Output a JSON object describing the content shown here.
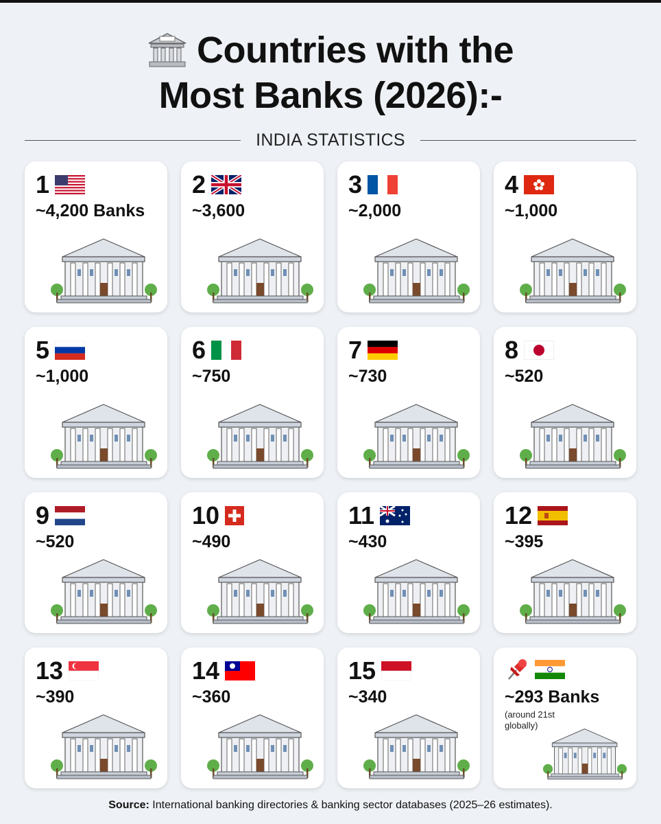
{
  "header": {
    "title_line1": "Countries with the",
    "title_line2": "Most Banks (2026):-",
    "subtitle": "INDIA STATISTICS"
  },
  "cards": [
    {
      "rank": "1",
      "count": "~4,200 Banks"
    },
    {
      "rank": "2",
      "count": "~3,600"
    },
    {
      "rank": "3",
      "count": "~2,000"
    },
    {
      "rank": "4",
      "count": "~1,000"
    },
    {
      "rank": "5",
      "count": "~1,000"
    },
    {
      "rank": "6",
      "count": "~750"
    },
    {
      "rank": "7",
      "count": "~730"
    },
    {
      "rank": "8",
      "count": "~520"
    },
    {
      "rank": "9",
      "count": "~520"
    },
    {
      "rank": "10",
      "count": "~490"
    },
    {
      "rank": "11",
      "count": "~430"
    },
    {
      "rank": "12",
      "count": "~395"
    },
    {
      "rank": "13",
      "count": "~390"
    },
    {
      "rank": "14",
      "count": "~360"
    },
    {
      "rank": "15",
      "count": "~340"
    },
    {
      "count": "~293 Banks",
      "note": "(around 21st globally)"
    }
  ],
  "footer": {
    "source_label": "Source:",
    "source_text": "International banking directories & banking sector databases (2025–26 estimates)."
  }
}
